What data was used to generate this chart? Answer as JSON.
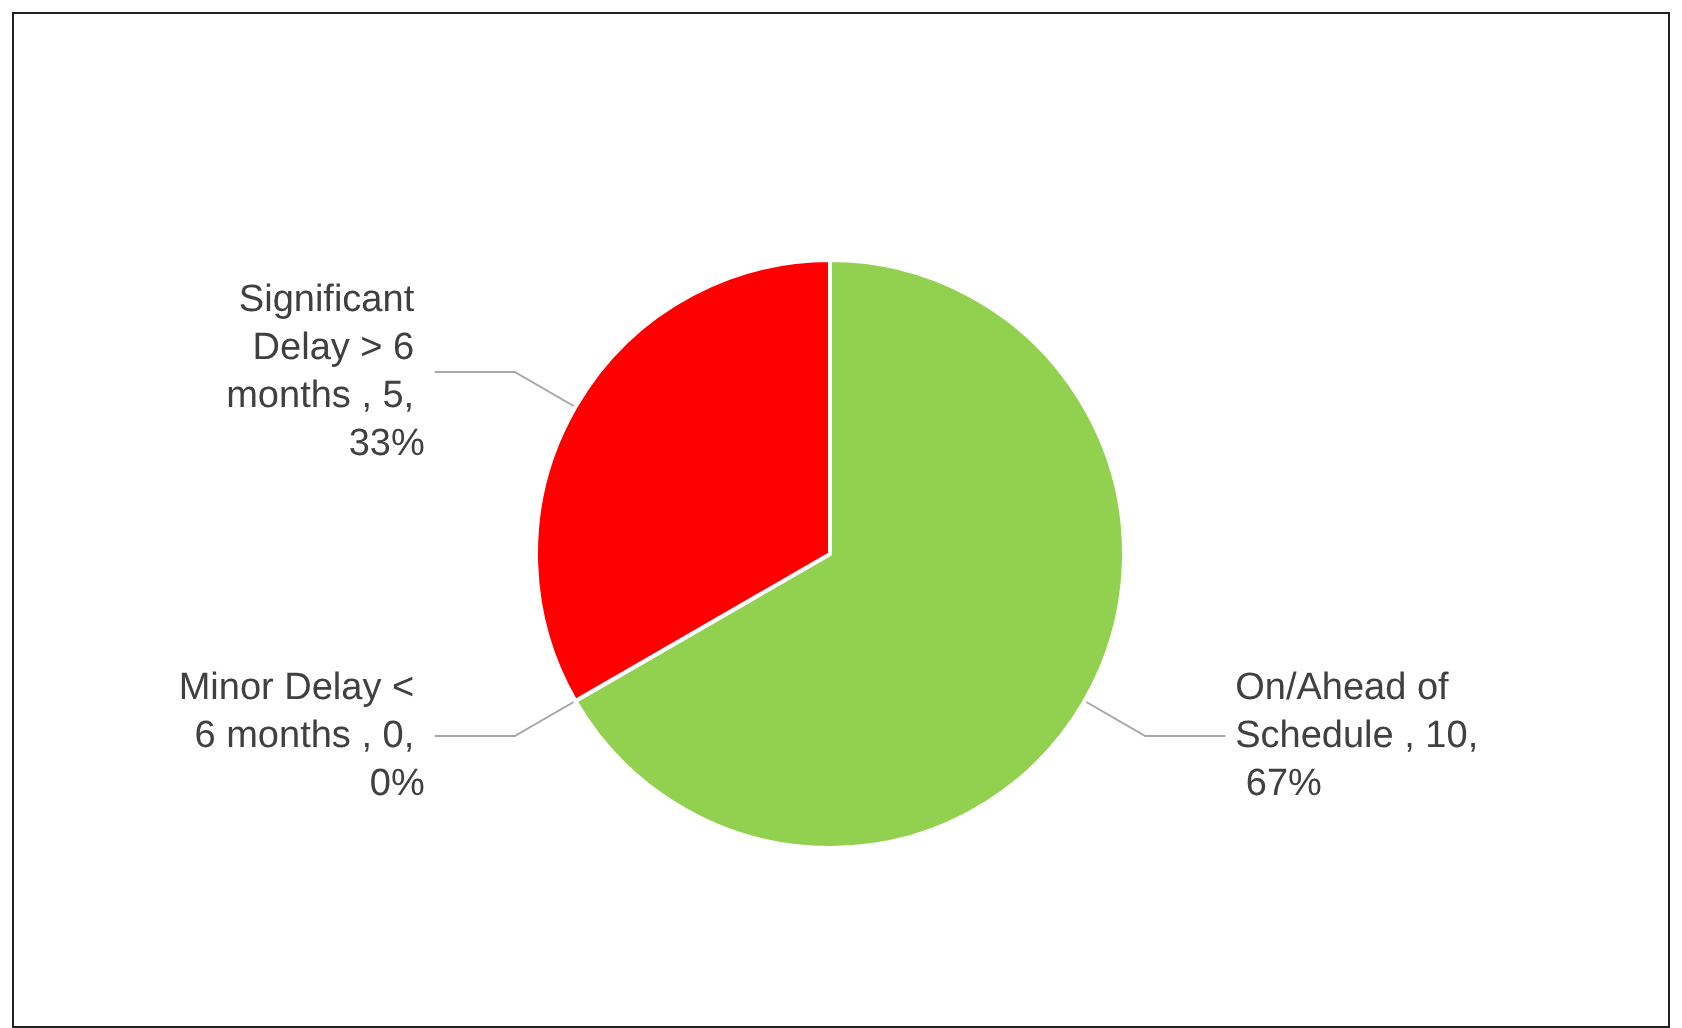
{
  "chart_data": {
    "type": "pie",
    "categories": [
      "On/Ahead of Schedule",
      "Minor Delay < 6 months",
      "Significant Delay > 6 months"
    ],
    "values": [
      10,
      0,
      5
    ],
    "colors": [
      "#92d050",
      "#a5a5a5",
      "#ff0000"
    ],
    "value_labels": [
      "10, 67%",
      "0, 0%",
      "5, 33%"
    ]
  }
}
